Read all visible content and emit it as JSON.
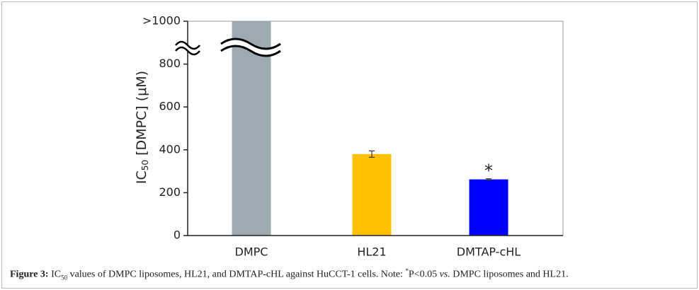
{
  "chart_data": {
    "type": "bar",
    "ylabel": {
      "main": "IC",
      "sub": "50",
      "rest": " [DMPC] (μM)"
    },
    "categories": [
      "DMPC",
      "HL21",
      "DMTAP-cHL"
    ],
    "values": [
      1000,
      380,
      262
    ],
    "errors": [
      null,
      15,
      3
    ],
    "colors": [
      "#9eaab2",
      "#ffc000",
      "#0000ff"
    ],
    "ylim": [
      0,
      1000
    ],
    "yticks": [
      0,
      200,
      400,
      600,
      800,
      {
        "value": 1000,
        "label": ">1000"
      }
    ],
    "annotation": "*",
    "grid": false
  },
  "caption": {
    "label": "Figure 3:",
    "t1": " IC",
    "sub": "50",
    "t2": " values of DMPC liposomes, HL21, and DMTAP-cHL against HuCCT-1 cells. Note: ",
    "sup": "*",
    "t3": "P<0.05 ",
    "em": "vs.",
    "t4": " DMPC liposomes and HL21."
  }
}
